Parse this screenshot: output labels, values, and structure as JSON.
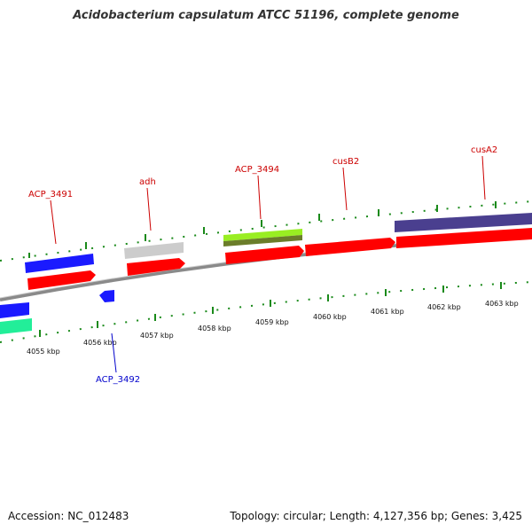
{
  "title": "Acidobacterium capsulatum ATCC 51196, complete genome",
  "footer": {
    "accession": "Accession: NC_012483",
    "topology": "Topology: circular; Length: 4,127,356 bp; Genes: 3,425"
  },
  "scale_labels": [
    "4055 kbp",
    "4056 kbp",
    "4057 kbp",
    "4058 kbp",
    "4059 kbp",
    "4060 kbp",
    "4061 kbp",
    "4062 kbp",
    "4063 kbp"
  ],
  "gene_labels": {
    "acp3491": "ACP_3491",
    "adh": "adh",
    "acp3494": "ACP_3494",
    "cusb2": "cusB2",
    "cusa2": "cusA2",
    "acp3492": "ACP_3492"
  },
  "colors": {
    "cds_forward": "#ff0000",
    "label_forward": "#cc0000",
    "label_reverse": "#0000cc",
    "tick": "#1a8a1a",
    "backbone": "#888888",
    "blue_feature": "#1a1aff",
    "gray_feature": "#cccccc",
    "lime_feature": "#99ee22",
    "olive_feature": "#6b7d2a",
    "purple_feature": "#4a3f8f",
    "teal_feature": "#22ee99"
  }
}
